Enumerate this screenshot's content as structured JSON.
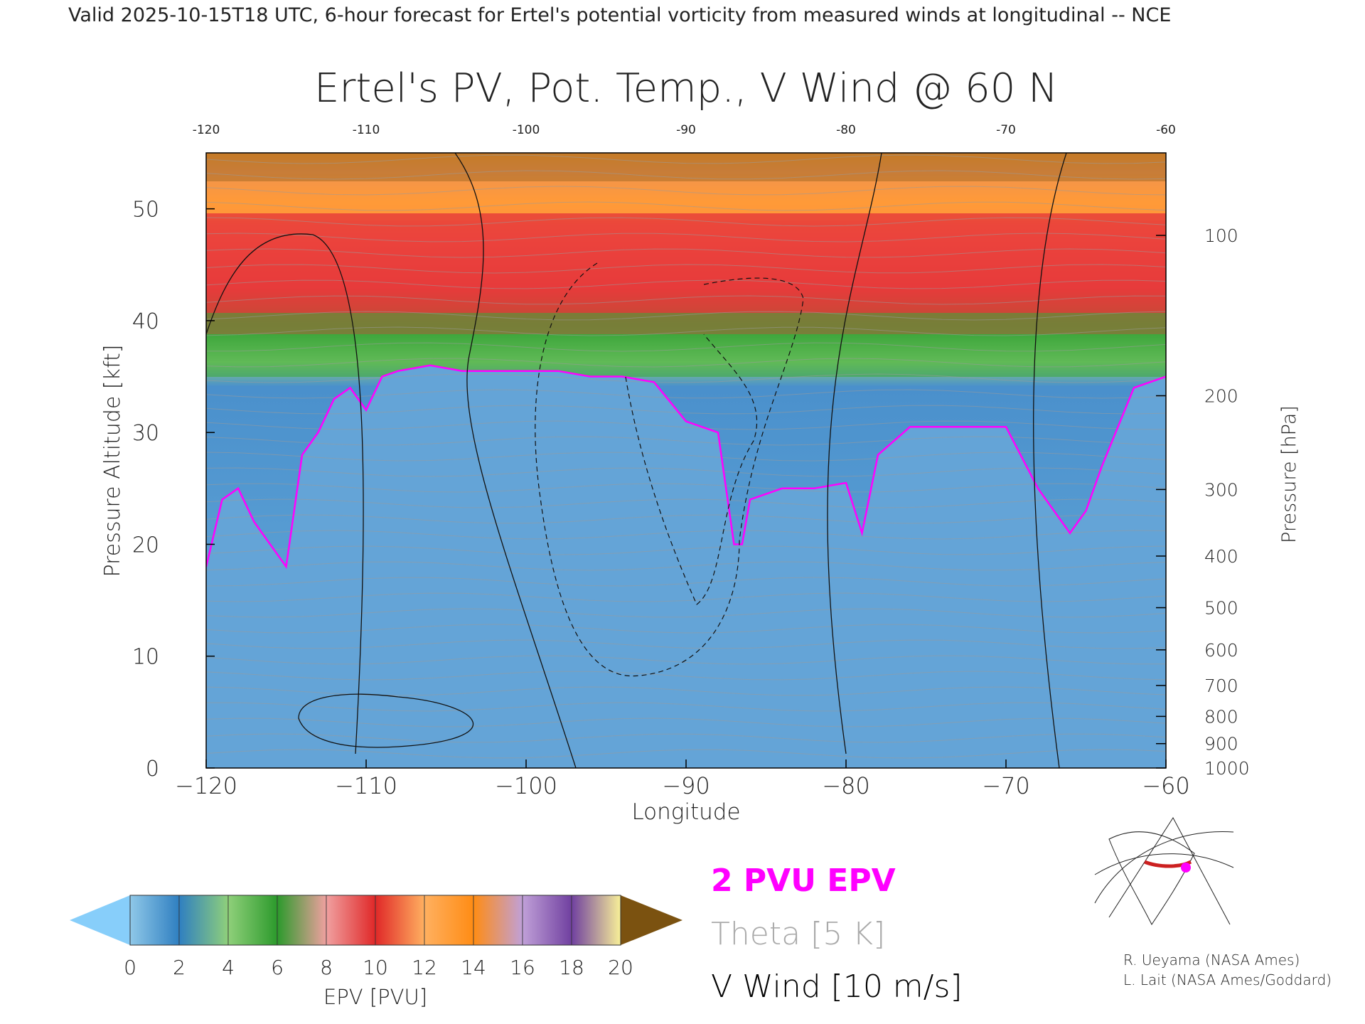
{
  "header": {
    "valid_line": "Valid 2025-10-15T18 UTC, 6-hour forecast for Ertel's potential vorticity from measured winds at longitudinal -- NCE"
  },
  "chart_data": {
    "type": "heatmap",
    "title": "Ertel's PV, Pot. Temp., V Wind @ 60 N",
    "xlabel": "Longitude",
    "ylabel_left": "Pressure Altitude [kft]",
    "ylabel_right": "Pressure [hPa]",
    "xlim": [
      -120,
      -60
    ],
    "ylim": [
      0,
      55
    ],
    "x_ticks": [
      -120,
      -110,
      -100,
      -90,
      -80,
      -70,
      -60
    ],
    "x_tick_labels": [
      "−120",
      "−110",
      "−100",
      "−90",
      "−80",
      "−70",
      "−60"
    ],
    "top_tick_labels": [
      "-120",
      "-110",
      "-100",
      "-90",
      "-80",
      "-70",
      "-60"
    ],
    "y_ticks": [
      0,
      10,
      20,
      30,
      40,
      50
    ],
    "y_tick_labels": [
      "0",
      "10",
      "20",
      "30",
      "40",
      "50"
    ],
    "pressure_ticks": [
      1000,
      900,
      800,
      700,
      600,
      500,
      400,
      300,
      200,
      100
    ],
    "pressure_tick_labels": [
      "1000",
      "900",
      "800",
      "700",
      "600",
      "500",
      "400",
      "300",
      "200",
      "100"
    ],
    "pv2_boundary": {
      "lon": [
        -120,
        -119,
        -118,
        -117,
        -116,
        -115,
        -114,
        -113,
        -112,
        -111,
        -110,
        -109,
        -108,
        -106,
        -104,
        -102,
        -100,
        -98,
        -96,
        -94,
        -92,
        -90,
        -88,
        -87,
        -86.5,
        -86,
        -85,
        -84,
        -82,
        -80,
        -79,
        -78,
        -76,
        -74,
        -72,
        -70,
        -68,
        -67,
        -66,
        -65,
        -64,
        -62,
        -60
      ],
      "kft": [
        18,
        24,
        25,
        22,
        20,
        18,
        28,
        30,
        33,
        34,
        32,
        35,
        35.5,
        36,
        35.5,
        35.5,
        35.5,
        35.5,
        35,
        35,
        34.5,
        31,
        30,
        20,
        20,
        24,
        24.5,
        25,
        25,
        25.5,
        21,
        28,
        30.5,
        30.5,
        30.5,
        30.5,
        25,
        23,
        21,
        23,
        27,
        34,
        35
      ]
    },
    "theta_interval": "5 K",
    "vwind_interval": "10 m/s",
    "colorbar": {
      "label": "EPV [PVU]",
      "tick_labels": [
        "0",
        "2",
        "4",
        "6",
        "8",
        "10",
        "12",
        "14",
        "16",
        "18",
        "20"
      ],
      "colors": [
        "#8fc8e8",
        "#2f7fc1",
        "#8fd07a",
        "#2c9a2c",
        "#f0a0a0",
        "#e02828",
        "#ffb060",
        "#ff8c14",
        "#c0a0d8",
        "#7040a0",
        "#f8f098",
        "#8a5a10"
      ],
      "under_color": "#87cefa",
      "over_color": "#7b5210"
    },
    "legend": {
      "pv_label": "2 PVU EPV",
      "theta_label": "Theta [5 K]",
      "vwind_label": "V Wind [10 m/s]",
      "pv_color": "#ff00ff",
      "theta_color": "#aaaaaa",
      "vwind_color": "#000000"
    }
  },
  "credits": {
    "line1": "R. Ueyama (NASA Ames)",
    "line2": "L. Lait (NASA Ames/Goddard)"
  }
}
